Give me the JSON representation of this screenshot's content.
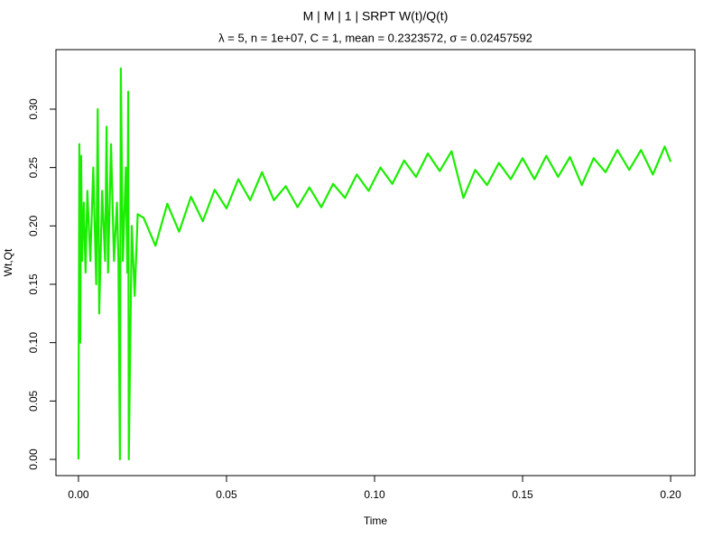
{
  "chart_data": {
    "type": "line",
    "title": "M | M | 1 | SRPT W(t)/Q(t)",
    "subtitle": "λ = 5,  n = 1e+07, C = 1, mean = 0.2323572, σ = 0.02457592",
    "x_label": "Time",
    "y_label": "Wt,Qt",
    "x": [
      0.0,
      0.0003,
      0.0006,
      0.0009,
      0.0012,
      0.0018,
      0.0024,
      0.003,
      0.004,
      0.005,
      0.006,
      0.0065,
      0.007,
      0.008,
      0.009,
      0.0095,
      0.01,
      0.011,
      0.012,
      0.013,
      0.0135,
      0.014,
      0.0143,
      0.015,
      0.016,
      0.0165,
      0.0168,
      0.017,
      0.0175,
      0.018,
      0.019,
      0.02,
      0.022,
      0.026,
      0.03,
      0.034,
      0.038,
      0.042,
      0.046,
      0.05,
      0.054,
      0.058,
      0.062,
      0.066,
      0.07,
      0.074,
      0.078,
      0.082,
      0.086,
      0.09,
      0.094,
      0.098,
      0.102,
      0.106,
      0.11,
      0.114,
      0.118,
      0.122,
      0.126,
      0.13,
      0.134,
      0.138,
      0.142,
      0.146,
      0.15,
      0.154,
      0.158,
      0.162,
      0.166,
      0.17,
      0.174,
      0.178,
      0.182,
      0.186,
      0.19,
      0.194,
      0.198,
      0.2
    ],
    "series": [
      {
        "name": "Wt,Qt",
        "color": "#1aee00",
        "values": [
          0.0,
          0.27,
          0.1,
          0.26,
          0.17,
          0.22,
          0.16,
          0.23,
          0.17,
          0.25,
          0.15,
          0.3,
          0.125,
          0.23,
          0.17,
          0.285,
          0.16,
          0.27,
          0.17,
          0.22,
          0.17,
          0.0,
          0.335,
          0.17,
          0.25,
          0.16,
          0.315,
          0.0,
          0.1,
          0.2,
          0.14,
          0.21,
          0.207,
          0.183,
          0.219,
          0.195,
          0.225,
          0.204,
          0.231,
          0.215,
          0.24,
          0.222,
          0.246,
          0.222,
          0.234,
          0.216,
          0.233,
          0.216,
          0.236,
          0.224,
          0.244,
          0.23,
          0.25,
          0.236,
          0.256,
          0.242,
          0.262,
          0.247,
          0.264,
          0.224,
          0.248,
          0.235,
          0.254,
          0.24,
          0.258,
          0.24,
          0.26,
          0.242,
          0.259,
          0.235,
          0.258,
          0.246,
          0.265,
          0.248,
          0.265,
          0.244,
          0.268,
          0.255
        ]
      }
    ],
    "xlim": [
      -0.0076,
      0.2082
    ],
    "ylim": [
      -0.0139,
      0.351
    ],
    "xticks": [
      {
        "value": 0,
        "label": "0.00"
      },
      {
        "value": 0.05,
        "label": "0.05"
      },
      {
        "value": 0.1,
        "label": "0.10"
      },
      {
        "value": 0.15,
        "label": "0.15"
      },
      {
        "value": 0.2,
        "label": "0.20"
      }
    ],
    "yticks": [
      {
        "value": 0,
        "label": "0.00"
      },
      {
        "value": 0.05,
        "label": "0.05"
      },
      {
        "value": 0.1,
        "label": "0.10"
      },
      {
        "value": 0.15,
        "label": "0.15"
      },
      {
        "value": 0.2,
        "label": "0.20"
      },
      {
        "value": 0.25,
        "label": "0.25"
      },
      {
        "value": 0.3,
        "label": "0.30"
      }
    ],
    "grid": false
  }
}
